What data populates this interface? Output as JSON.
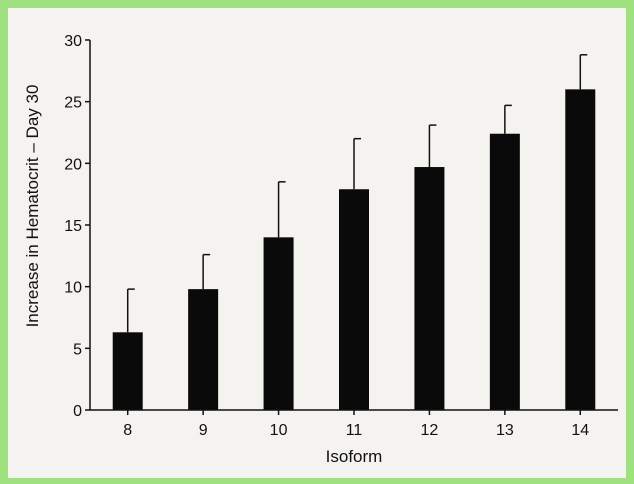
{
  "chart_data": {
    "type": "bar",
    "categories": [
      "8",
      "9",
      "10",
      "11",
      "12",
      "13",
      "14"
    ],
    "values": [
      6.3,
      9.8,
      14.0,
      17.9,
      19.7,
      22.4,
      26.0
    ],
    "error_upper": [
      3.5,
      2.8,
      4.5,
      4.1,
      3.4,
      2.3,
      2.8
    ],
    "xlabel": "Isoform",
    "ylabel": "Increase in Hematocrit – Day 30",
    "ylim": [
      0,
      30
    ],
    "yticks": [
      0,
      5,
      10,
      15,
      20,
      25,
      30
    ],
    "grid": false,
    "legend": "none",
    "bar_color": "#0a0a0a"
  }
}
